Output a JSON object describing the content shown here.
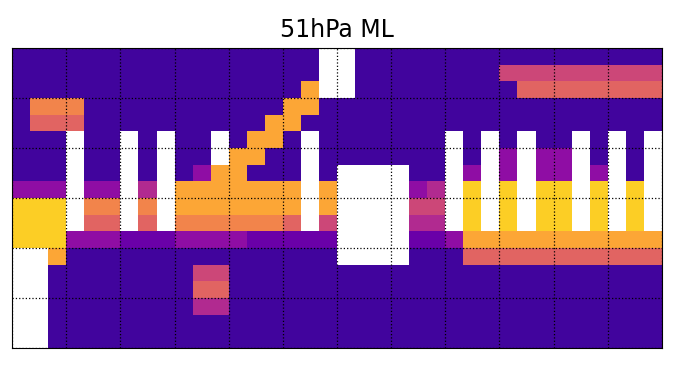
{
  "chart_data": {
    "type": "heatmap",
    "title": "51hPa ML",
    "xlim": [
      -180,
      180
    ],
    "ylim": [
      -90,
      90
    ],
    "xticks": [
      -180,
      -150,
      -120,
      -90,
      -60,
      -30,
      0,
      30,
      60,
      90,
      120,
      150,
      180
    ],
    "yticks": [
      -90,
      -60,
      -30,
      0,
      30,
      60,
      90
    ],
    "grid": true,
    "tick_labels": false,
    "value_range": [
      0,
      1
    ],
    "cells": [
      [
        0.1,
        0.1,
        0.1,
        0.1,
        0.1,
        0.1,
        0.1,
        0.1,
        0.1,
        0.1,
        0.1,
        0.1,
        0.1,
        0.1,
        0.1,
        0.1,
        0.1,
        null,
        null,
        0.1,
        0.1,
        0.1,
        0.1,
        0.1,
        0.1,
        0.1,
        0.1,
        0.1,
        0.1,
        0.1,
        0.1,
        0.1,
        0.1,
        0.1,
        0.1,
        0.1
      ],
      [
        0.1,
        0.1,
        0.1,
        0.1,
        0.1,
        0.1,
        0.1,
        0.1,
        0.1,
        0.1,
        0.1,
        0.1,
        0.1,
        0.1,
        0.1,
        0.1,
        0.1,
        null,
        null,
        0.1,
        0.1,
        0.1,
        0.1,
        0.1,
        0.1,
        0.1,
        0.1,
        0.5,
        0.5,
        0.5,
        0.5,
        0.5,
        0.5,
        0.5,
        0.5,
        0.5
      ],
      [
        0.1,
        0.1,
        0.1,
        0.1,
        0.1,
        0.1,
        0.1,
        0.1,
        0.1,
        0.1,
        0.1,
        0.1,
        0.1,
        0.1,
        0.1,
        0.1,
        0.8,
        null,
        null,
        0.1,
        0.1,
        0.1,
        0.1,
        0.1,
        0.1,
        0.1,
        0.1,
        0.1,
        0.6,
        0.6,
        0.6,
        0.6,
        0.6,
        0.6,
        0.6,
        0.6
      ],
      [
        0.1,
        0.7,
        0.7,
        0.7,
        0.1,
        0.1,
        0.1,
        0.1,
        0.1,
        0.1,
        0.1,
        0.1,
        0.1,
        0.1,
        0.1,
        0.8,
        0.8,
        0.1,
        0.1,
        0.1,
        0.1,
        0.1,
        0.1,
        0.1,
        0.1,
        0.1,
        0.1,
        0.1,
        0.1,
        0.1,
        0.1,
        0.1,
        0.1,
        0.1,
        0.1,
        0.1
      ],
      [
        0.1,
        0.6,
        0.6,
        0.6,
        0.1,
        0.1,
        0.1,
        0.1,
        0.1,
        0.1,
        0.1,
        0.1,
        0.1,
        0.1,
        0.8,
        0.8,
        0.1,
        0.1,
        0.1,
        0.1,
        0.1,
        0.1,
        0.1,
        0.1,
        0.1,
        0.1,
        0.1,
        0.1,
        0.1,
        0.1,
        0.1,
        0.1,
        0.1,
        0.1,
        0.1,
        0.1
      ],
      [
        0.1,
        0.1,
        0.1,
        null,
        0.1,
        0.1,
        null,
        0.1,
        null,
        0.1,
        0.1,
        null,
        0.1,
        0.8,
        0.8,
        0.1,
        null,
        0.1,
        0.1,
        0.1,
        0.1,
        0.1,
        0.1,
        0.1,
        null,
        0.1,
        null,
        0.1,
        null,
        0.1,
        0.1,
        null,
        0.1,
        null,
        0.1,
        null
      ],
      [
        0.1,
        0.1,
        0.1,
        null,
        0.1,
        0.1,
        null,
        0.1,
        null,
        0.1,
        0.1,
        null,
        0.8,
        0.8,
        0.1,
        0.1,
        null,
        0.1,
        0.1,
        0.1,
        0.1,
        0.1,
        0.1,
        0.1,
        null,
        0.1,
        null,
        0.3,
        null,
        0.3,
        0.3,
        null,
        0.1,
        null,
        0.1,
        null
      ],
      [
        0.1,
        0.1,
        0.1,
        null,
        0.1,
        0.1,
        null,
        0.1,
        null,
        0.1,
        0.3,
        0.8,
        0.8,
        0.1,
        0.1,
        0.1,
        null,
        0.1,
        null,
        null,
        null,
        null,
        0.1,
        0.1,
        null,
        0.3,
        null,
        0.3,
        null,
        0.3,
        0.3,
        null,
        0.3,
        null,
        0.1,
        null
      ],
      [
        0.3,
        0.3,
        0.3,
        null,
        0.3,
        0.3,
        null,
        0.4,
        null,
        0.8,
        0.8,
        0.8,
        0.8,
        0.8,
        0.8,
        0.8,
        null,
        0.8,
        null,
        null,
        null,
        null,
        0.3,
        0.4,
        null,
        0.9,
        null,
        0.9,
        null,
        0.9,
        0.9,
        null,
        0.9,
        null,
        0.9,
        null
      ],
      [
        0.9,
        0.9,
        0.9,
        null,
        0.7,
        0.7,
        null,
        0.7,
        null,
        0.8,
        0.8,
        0.8,
        0.8,
        0.8,
        0.8,
        0.8,
        null,
        0.8,
        null,
        null,
        null,
        null,
        0.5,
        0.5,
        null,
        0.9,
        null,
        0.9,
        null,
        0.9,
        0.9,
        null,
        0.9,
        null,
        0.9,
        null
      ],
      [
        0.9,
        0.9,
        0.9,
        null,
        0.6,
        0.6,
        null,
        0.6,
        null,
        0.7,
        0.7,
        0.7,
        0.7,
        0.7,
        0.7,
        0.6,
        null,
        0.5,
        null,
        null,
        null,
        null,
        0.4,
        0.4,
        null,
        0.9,
        null,
        0.9,
        null,
        0.9,
        0.9,
        null,
        0.9,
        null,
        0.9,
        null
      ],
      [
        0.9,
        0.9,
        0.9,
        0.3,
        0.3,
        0.3,
        0.2,
        0.2,
        0.2,
        0.3,
        0.3,
        0.3,
        0.3,
        0.2,
        0.2,
        0.2,
        0.2,
        0.2,
        null,
        null,
        null,
        null,
        0.2,
        0.2,
        0.3,
        0.8,
        0.8,
        0.8,
        0.8,
        0.8,
        0.8,
        0.8,
        0.8,
        0.8,
        0.8,
        0.8
      ],
      [
        null,
        null,
        0.8,
        0.1,
        0.1,
        0.1,
        0.1,
        0.1,
        0.1,
        0.1,
        0.1,
        0.1,
        0.1,
        0.1,
        0.1,
        0.1,
        0.1,
        0.1,
        null,
        null,
        null,
        null,
        0.1,
        0.1,
        0.1,
        0.6,
        0.6,
        0.6,
        0.6,
        0.6,
        0.6,
        0.6,
        0.6,
        0.6,
        0.6,
        0.6
      ],
      [
        null,
        null,
        0.1,
        0.1,
        0.1,
        0.1,
        0.1,
        0.1,
        0.1,
        0.1,
        0.5,
        0.5,
        0.1,
        0.1,
        0.1,
        0.1,
        0.1,
        0.1,
        0.1,
        0.1,
        0.1,
        0.1,
        0.1,
        0.1,
        0.1,
        0.1,
        0.1,
        0.1,
        0.1,
        0.1,
        0.1,
        0.1,
        0.1,
        0.1,
        0.1,
        0.1
      ],
      [
        null,
        null,
        0.1,
        0.1,
        0.1,
        0.1,
        0.1,
        0.1,
        0.1,
        0.1,
        0.6,
        0.6,
        0.1,
        0.1,
        0.1,
        0.1,
        0.1,
        0.1,
        0.1,
        0.1,
        0.1,
        0.1,
        0.1,
        0.1,
        0.1,
        0.1,
        0.1,
        0.1,
        0.1,
        0.1,
        0.1,
        0.1,
        0.1,
        0.1,
        0.1,
        0.1
      ],
      [
        null,
        null,
        0.1,
        0.1,
        0.1,
        0.1,
        0.1,
        0.1,
        0.1,
        0.1,
        0.4,
        0.4,
        0.1,
        0.1,
        0.1,
        0.1,
        0.1,
        0.1,
        0.1,
        0.1,
        0.1,
        0.1,
        0.1,
        0.1,
        0.1,
        0.1,
        0.1,
        0.1,
        0.1,
        0.1,
        0.1,
        0.1,
        0.1,
        0.1,
        0.1,
        0.1
      ],
      [
        null,
        null,
        0.1,
        0.1,
        0.1,
        0.1,
        0.1,
        0.1,
        0.1,
        0.1,
        0.1,
        0.1,
        0.1,
        0.1,
        0.1,
        0.1,
        0.1,
        0.1,
        0.1,
        0.1,
        0.1,
        0.1,
        0.1,
        0.1,
        0.1,
        0.1,
        0.1,
        0.1,
        0.1,
        0.1,
        0.1,
        0.1,
        0.1,
        0.1,
        0.1,
        0.1
      ],
      [
        null,
        null,
        0.1,
        0.1,
        0.1,
        0.1,
        0.1,
        0.1,
        0.1,
        0.1,
        0.1,
        0.1,
        0.1,
        0.1,
        0.1,
        0.1,
        0.1,
        0.1,
        0.1,
        0.1,
        0.1,
        0.1,
        0.1,
        0.1,
        0.1,
        0.1,
        0.1,
        0.1,
        0.1,
        0.1,
        0.1,
        0.1,
        0.1,
        0.1,
        0.1,
        0.1
      ]
    ]
  }
}
